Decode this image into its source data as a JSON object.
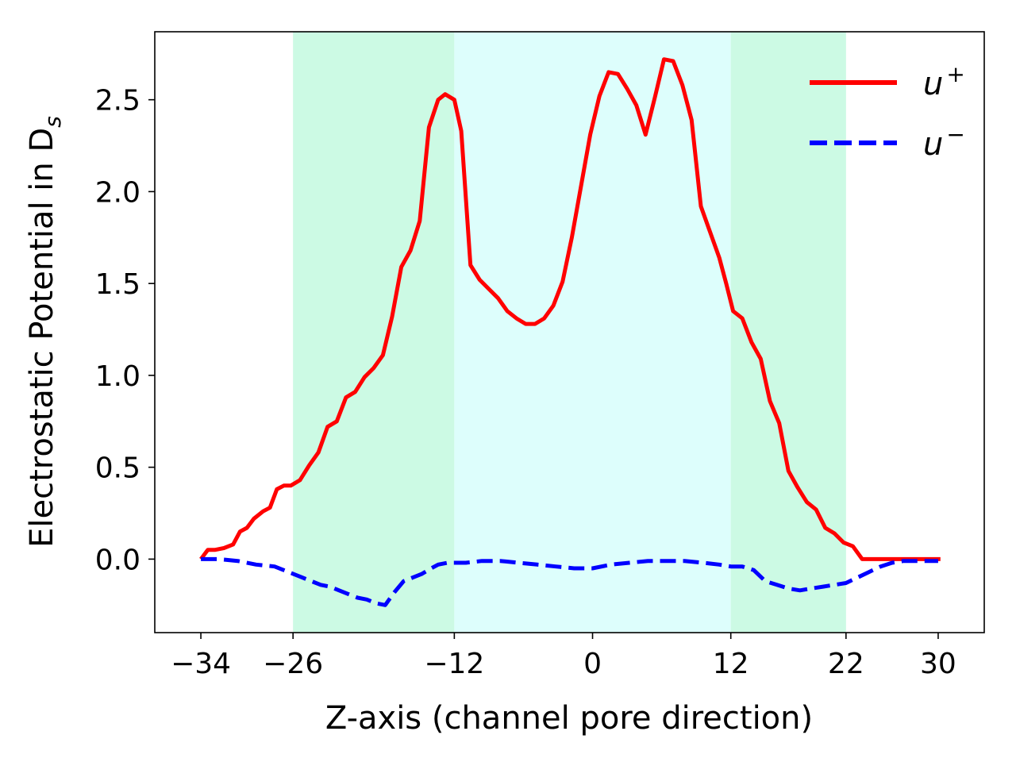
{
  "chart_data": {
    "type": "line",
    "title": "",
    "xlabel": "Z-axis (channel pore direction)",
    "ylabel": "Electrostatic Potential in D",
    "ylabel_subscript": "s",
    "xlim": [
      -38,
      34
    ],
    "ylim": [
      -0.4,
      2.87
    ],
    "x_ticks": [
      -34,
      -26,
      -12,
      0,
      12,
      22,
      30
    ],
    "x_tick_labels": [
      "−34",
      "−26",
      "−12",
      "0",
      "12",
      "22",
      "30"
    ],
    "y_ticks": [
      0.0,
      0.5,
      1.0,
      1.5,
      2.0,
      2.5
    ],
    "y_tick_labels": [
      "0.0",
      "0.5",
      "1.0",
      "1.5",
      "2.0",
      "2.5"
    ],
    "grid": false,
    "legend_position": "top-right",
    "shaded_regions": [
      {
        "x_start": -26,
        "x_end": -12,
        "color": "#ccfae4"
      },
      {
        "x_start": -12,
        "x_end": 12,
        "color": "#ddfefc"
      },
      {
        "x_start": 12,
        "x_end": 22,
        "color": "#ccfae4"
      }
    ],
    "series": [
      {
        "name": "u",
        "name_superscript": "+",
        "color": "#ff0000",
        "line_style": "solid",
        "x": [
          -34,
          -33.4,
          -32.8,
          -32.0,
          -31.2,
          -30.6,
          -30.0,
          -29.4,
          -28.6,
          -28.0,
          -27.4,
          -26.8,
          -26.2,
          -25.4,
          -24.6,
          -23.8,
          -23.0,
          -22.2,
          -21.4,
          -20.6,
          -19.8,
          -19.0,
          -18.2,
          -17.4,
          -16.6,
          -15.8,
          -15.0,
          -14.2,
          -13.4,
          -12.8,
          -12.0,
          -11.4,
          -10.6,
          -9.8,
          -9.0,
          -8.2,
          -7.4,
          -6.6,
          -5.8,
          -5.0,
          -4.2,
          -3.4,
          -2.6,
          -1.8,
          -1.0,
          -0.2,
          0.6,
          1.4,
          2.2,
          3.0,
          3.8,
          4.6,
          5.4,
          6.2,
          7.0,
          7.8,
          8.6,
          9.4,
          10.2,
          11.0,
          11.6,
          12.2,
          13.0,
          13.8,
          14.6,
          15.4,
          16.2,
          17.0,
          17.8,
          18.6,
          19.4,
          20.2,
          21.0,
          21.8,
          22.6,
          23.4,
          24.2,
          25.0,
          25.6,
          26.2,
          26.8,
          27.4,
          28.0,
          28.6,
          29.2,
          29.8,
          30.2
        ],
        "y": [
          0.0,
          0.05,
          0.05,
          0.06,
          0.08,
          0.15,
          0.17,
          0.22,
          0.26,
          0.28,
          0.38,
          0.4,
          0.4,
          0.43,
          0.51,
          0.58,
          0.72,
          0.75,
          0.88,
          0.91,
          0.99,
          1.04,
          1.11,
          1.32,
          1.59,
          1.68,
          1.84,
          2.35,
          2.5,
          2.53,
          2.5,
          2.33,
          1.6,
          1.52,
          1.47,
          1.42,
          1.35,
          1.31,
          1.28,
          1.28,
          1.31,
          1.38,
          1.51,
          1.75,
          2.03,
          2.31,
          2.52,
          2.65,
          2.64,
          2.56,
          2.47,
          2.31,
          2.51,
          2.72,
          2.71,
          2.58,
          2.39,
          1.92,
          1.78,
          1.64,
          1.5,
          1.35,
          1.31,
          1.18,
          1.09,
          0.86,
          0.74,
          0.48,
          0.39,
          0.31,
          0.27,
          0.17,
          0.14,
          0.09,
          0.07,
          0.0,
          0.0,
          0.0,
          0.0,
          0.0,
          0.0,
          0.0,
          0.0,
          0.0,
          0.0,
          0.0,
          0.0
        ]
      },
      {
        "name": "u",
        "name_superscript": "−",
        "color": "#0000ff",
        "line_style": "dashed",
        "x": [
          -34,
          -32.4,
          -30.8,
          -29.2,
          -27.6,
          -26.8,
          -26.0,
          -25.2,
          -24.4,
          -23.6,
          -22.8,
          -22.0,
          -21.2,
          -20.4,
          -19.6,
          -18.8,
          -18.0,
          -17.2,
          -16.4,
          -15.6,
          -14.8,
          -14.0,
          -13.4,
          -12.6,
          -11.8,
          -11.0,
          -9.6,
          -8.0,
          -6.4,
          -4.8,
          -3.2,
          -1.6,
          0.0,
          1.6,
          3.2,
          4.8,
          6.4,
          8.0,
          9.6,
          11.0,
          12.0,
          13.0,
          14.0,
          15.0,
          16.0,
          17.0,
          18.0,
          19.0,
          20.0,
          21.0,
          22.0,
          23.0,
          24.0,
          25.0,
          26.0,
          27.0,
          28.0,
          29.0,
          30.0
        ],
        "y": [
          0.0,
          0.0,
          -0.01,
          -0.03,
          -0.04,
          -0.06,
          -0.08,
          -0.1,
          -0.12,
          -0.14,
          -0.15,
          -0.17,
          -0.19,
          -0.21,
          -0.22,
          -0.24,
          -0.25,
          -0.18,
          -0.12,
          -0.1,
          -0.08,
          -0.05,
          -0.03,
          -0.02,
          -0.02,
          -0.02,
          -0.01,
          -0.01,
          -0.02,
          -0.03,
          -0.04,
          -0.05,
          -0.05,
          -0.03,
          -0.02,
          -0.01,
          -0.01,
          -0.01,
          -0.02,
          -0.03,
          -0.04,
          -0.04,
          -0.06,
          -0.12,
          -0.14,
          -0.16,
          -0.17,
          -0.16,
          -0.15,
          -0.14,
          -0.13,
          -0.1,
          -0.07,
          -0.04,
          -0.02,
          -0.01,
          -0.01,
          -0.01,
          -0.01
        ]
      }
    ]
  }
}
